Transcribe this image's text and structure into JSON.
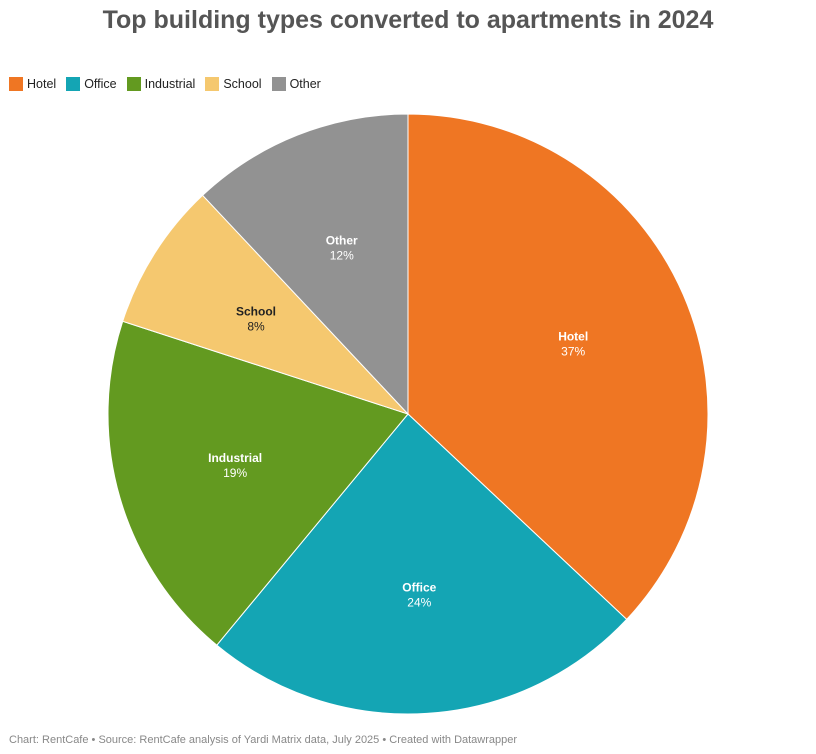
{
  "chart_data": {
    "type": "pie",
    "title": "Top building types converted to apartments in 2024",
    "legend_position": "top-left",
    "slices": [
      {
        "label": "Hotel",
        "value": 37,
        "display": "37%",
        "color": "#ef7623",
        "label_color": "#ffffff"
      },
      {
        "label": "Office",
        "value": 24,
        "display": "24%",
        "color": "#14a5b4",
        "label_color": "#ffffff"
      },
      {
        "label": "Industrial",
        "value": 19,
        "display": "19%",
        "color": "#639a20",
        "label_color": "#ffffff"
      },
      {
        "label": "School",
        "value": 8,
        "display": "8%",
        "color": "#f5c86f",
        "label_color": "#222222"
      },
      {
        "label": "Other",
        "value": 12,
        "display": "12%",
        "color": "#929292",
        "label_color": "#ffffff"
      }
    ]
  },
  "footer": {
    "text": "Chart: RentCafe • Source: RentCafe analysis of Yardi Matrix data, July 2025  • Created with Datawrapper"
  }
}
